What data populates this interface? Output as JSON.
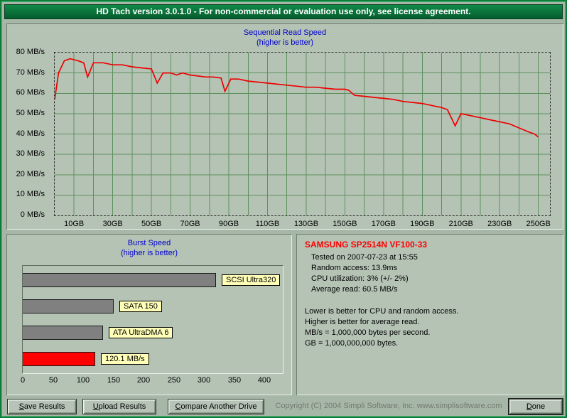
{
  "window": {
    "title": "HD Tach version 3.0.1.0  - For non-commercial or evaluation use only, see license agreement."
  },
  "sequential_chart": {
    "title": "Sequential Read Speed",
    "subtitle": "(higher is better)"
  },
  "burst_chart": {
    "title": "Burst Speed",
    "subtitle": "(higher is better)"
  },
  "chart_data": [
    {
      "type": "line",
      "title": "Sequential Read Speed",
      "subtitle": "(higher is better)",
      "line_color": "#ee0000",
      "x_unit": "GB",
      "y_unit": "MB/s",
      "xlim": [
        0,
        256
      ],
      "ylim": [
        0,
        80
      ],
      "x_grid_step": 10,
      "y_grid_step": 10,
      "x_tick_values": [
        10,
        30,
        50,
        70,
        90,
        110,
        130,
        150,
        170,
        190,
        210,
        230,
        250
      ],
      "x_tick_labels": [
        "10GB",
        "30GB",
        "50GB",
        "70GB",
        "90GB",
        "110GB",
        "130GB",
        "150GB",
        "170GB",
        "190GB",
        "210GB",
        "230GB",
        "250GB"
      ],
      "y_tick_labels": [
        "0 MB/s",
        "10 MB/s",
        "20 MB/s",
        "30 MB/s",
        "40 MB/s",
        "50 MB/s",
        "60 MB/s",
        "70 MB/s",
        "80 MB/s"
      ],
      "points": [
        [
          0,
          57
        ],
        [
          2,
          70
        ],
        [
          5,
          76
        ],
        [
          8,
          77
        ],
        [
          12,
          76
        ],
        [
          15,
          75
        ],
        [
          17,
          68
        ],
        [
          20,
          75
        ],
        [
          25,
          75
        ],
        [
          30,
          74
        ],
        [
          35,
          74
        ],
        [
          40,
          73
        ],
        [
          45,
          72.5
        ],
        [
          50,
          72
        ],
        [
          53,
          65
        ],
        [
          56,
          70
        ],
        [
          60,
          70
        ],
        [
          63,
          69
        ],
        [
          66,
          70
        ],
        [
          70,
          69
        ],
        [
          74,
          68.5
        ],
        [
          78,
          68
        ],
        [
          82,
          68
        ],
        [
          86,
          67.5
        ],
        [
          88,
          61
        ],
        [
          91,
          67
        ],
        [
          95,
          67
        ],
        [
          100,
          66
        ],
        [
          105,
          65.5
        ],
        [
          110,
          65
        ],
        [
          115,
          64.5
        ],
        [
          120,
          64
        ],
        [
          125,
          63.5
        ],
        [
          130,
          63
        ],
        [
          135,
          63
        ],
        [
          140,
          62.5
        ],
        [
          145,
          62
        ],
        [
          150,
          62
        ],
        [
          152,
          61.5
        ],
        [
          155,
          59
        ],
        [
          160,
          58.5
        ],
        [
          165,
          58
        ],
        [
          170,
          57.5
        ],
        [
          175,
          57
        ],
        [
          180,
          56
        ],
        [
          185,
          55.5
        ],
        [
          190,
          55
        ],
        [
          195,
          54
        ],
        [
          200,
          53
        ],
        [
          203,
          52
        ],
        [
          207,
          44
        ],
        [
          210,
          50
        ],
        [
          215,
          49
        ],
        [
          220,
          48
        ],
        [
          225,
          47
        ],
        [
          230,
          46
        ],
        [
          235,
          45
        ],
        [
          240,
          43
        ],
        [
          245,
          41
        ],
        [
          248,
          40
        ],
        [
          250,
          38.5
        ]
      ]
    },
    {
      "type": "bar",
      "title": "Burst Speed",
      "subtitle": "(higher is better)",
      "orientation": "horizontal",
      "xlim": [
        0,
        430
      ],
      "x_ticks": [
        0,
        50,
        100,
        150,
        200,
        250,
        300,
        350,
        400
      ],
      "bars": [
        {
          "label": "SCSI Ultra320",
          "value": 320,
          "color": "#808080"
        },
        {
          "label": "SATA 150",
          "value": 150,
          "color": "#808080"
        },
        {
          "label": "ATA UltraDMA 6",
          "value": 133,
          "color": "#808080"
        },
        {
          "label": "120.1 MB/s",
          "value": 120.1,
          "color": "#ff0000"
        }
      ]
    }
  ],
  "info": {
    "drive_name": "SAMSUNG SP2514N VF100-33",
    "details": [
      "Tested on 2007-07-23 at 15:55",
      "Random access: 13.9ms",
      "CPU utilization: 3% (+/- 2%)",
      "Average read: 60.5 MB/s"
    ],
    "notes": [
      "Lower is better for CPU and random access.",
      "Higher is better for average read.",
      "MB/s = 1,000,000 bytes per second.",
      "GB = 1,000,000,000 bytes."
    ]
  },
  "footer": {
    "save_button": "Save Results",
    "upload_button": "Upload Results",
    "compare_button": "Compare Another Drive",
    "done_button": "Done",
    "copyright": "Copyright (C) 2004 Simpli Software, Inc. www.simplisoftware.com"
  },
  "colors": {
    "accent_green": "#0b7d38",
    "chart_title_blue": "#0000cc",
    "drive_name_red": "#ff0000",
    "read_line_red": "#ee0000",
    "reference_bar_gray": "#808080",
    "drive_bar_red": "#ff0000",
    "label_box_yellow": "#ffffb8"
  }
}
